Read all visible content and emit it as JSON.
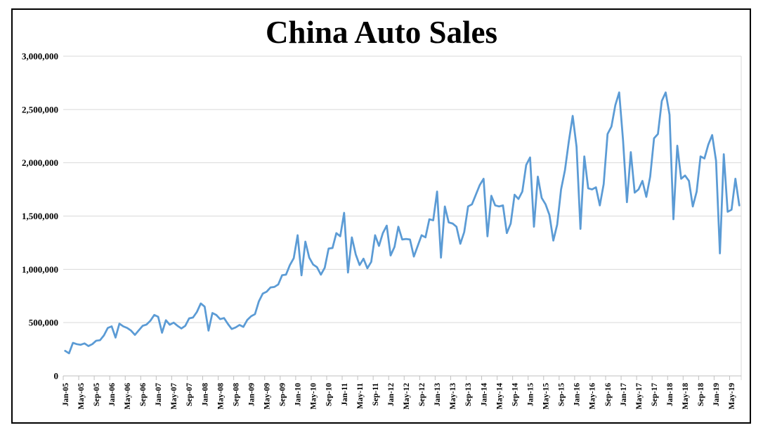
{
  "chart_data": {
    "type": "line",
    "title": "China Auto Sales",
    "xlabel": "",
    "ylabel": "",
    "ylim": [
      0,
      3000000
    ],
    "grid": "horizontal",
    "legend": "none",
    "line_color": "#5B9BD5",
    "gridline_color": "#D9D9D9",
    "axis_color": "#BFBFBF",
    "y_tick_labels": [
      "0",
      "500,000",
      "1,000,000",
      "1,500,000",
      "2,000,000",
      "2,500,000",
      "3,000,000"
    ],
    "y_tick_values": [
      0,
      500000,
      1000000,
      1500000,
      2000000,
      2500000,
      3000000
    ],
    "x_tick_labels": [
      "Jan-05",
      "May-05",
      "Sep-05",
      "Jan-06",
      "May-06",
      "Sep-06",
      "Jan-07",
      "May-07",
      "Sep-07",
      "Jan-08",
      "May-08",
      "Sep-08",
      "Jan-09",
      "May-09",
      "Sep-09",
      "Jan-10",
      "May-10",
      "Sep-10",
      "Jan-11",
      "May-11",
      "Sep-11",
      "Jan-12",
      "May-12",
      "Sep-12",
      "Jan-13",
      "May-13",
      "Sep-13",
      "Jan-14",
      "May-14",
      "Sep-14",
      "Jan-15",
      "May-15",
      "Sep-15",
      "Jan-16",
      "May-16",
      "Sep-16",
      "Jan-17",
      "May-17",
      "Sep-17",
      "Jan-18",
      "May-18",
      "Sep-18",
      "Jan-19",
      "May-19"
    ],
    "x_tick_every_n_months": 4,
    "start_month": "Jan-05",
    "end_month": "Jul-19",
    "values": [
      235000,
      212000,
      310000,
      298000,
      292000,
      305000,
      280000,
      298000,
      330000,
      335000,
      380000,
      450000,
      465000,
      360000,
      490000,
      465000,
      450000,
      425000,
      385000,
      428000,
      470000,
      482000,
      518000,
      572000,
      555000,
      405000,
      522000,
      480000,
      500000,
      470000,
      445000,
      470000,
      540000,
      548000,
      600000,
      680000,
      650000,
      425000,
      590000,
      572000,
      533000,
      543000,
      488000,
      440000,
      455000,
      478000,
      460000,
      525000,
      560000,
      580000,
      700000,
      772000,
      790000,
      830000,
      835000,
      858000,
      945000,
      950000,
      1040000,
      1105000,
      1320000,
      944000,
      1260000,
      1110000,
      1045000,
      1020000,
      950000,
      1015000,
      1195000,
      1200000,
      1340000,
      1310000,
      1530000,
      970000,
      1300000,
      1140000,
      1040000,
      1100000,
      1010000,
      1070000,
      1320000,
      1220000,
      1340000,
      1410000,
      1130000,
      1210000,
      1400000,
      1280000,
      1285000,
      1280000,
      1120000,
      1220000,
      1320000,
      1300000,
      1470000,
      1460000,
      1730000,
      1110000,
      1590000,
      1440000,
      1430000,
      1400000,
      1240000,
      1350000,
      1590000,
      1610000,
      1700000,
      1790000,
      1850000,
      1310000,
      1690000,
      1600000,
      1590000,
      1600000,
      1340000,
      1430000,
      1700000,
      1660000,
      1730000,
      1980000,
      2050000,
      1400000,
      1870000,
      1670000,
      1610000,
      1510000,
      1270000,
      1420000,
      1750000,
      1930000,
      2200000,
      2440000,
      2150000,
      1380000,
      2060000,
      1760000,
      1750000,
      1770000,
      1600000,
      1800000,
      2270000,
      2340000,
      2540000,
      2660000,
      2210000,
      1630000,
      2100000,
      1720000,
      1750000,
      1830000,
      1680000,
      1870000,
      2230000,
      2270000,
      2580000,
      2660000,
      2450000,
      1470000,
      2160000,
      1850000,
      1880000,
      1830000,
      1590000,
      1730000,
      2060000,
      2040000,
      2170000,
      2260000,
      2020000,
      1150000,
      2080000,
      1540000,
      1560000,
      1850000,
      1600000
    ]
  }
}
